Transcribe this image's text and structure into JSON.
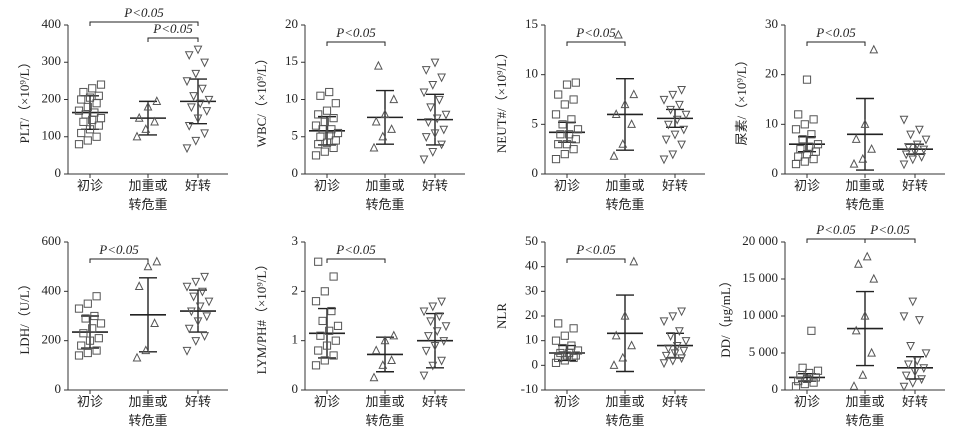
{
  "chart_data": [
    {
      "type": "dot",
      "ylabel": "PLT/（×10⁹/L）",
      "categories": [
        [
          "初诊"
        ],
        [
          "加重或",
          "转危重"
        ],
        [
          "好转"
        ]
      ],
      "markers": [
        "square",
        "triangle-up",
        "triangle-down"
      ],
      "color": "#555555",
      "ylim": [
        0,
        400
      ],
      "yticks": [
        0,
        100,
        200,
        300,
        400
      ],
      "groups": [
        {
          "values": [
            80,
            90,
            100,
            110,
            120,
            130,
            140,
            145,
            150,
            160,
            165,
            170,
            180,
            190,
            200,
            205,
            210,
            220,
            230,
            240
          ],
          "mean": 165,
          "sd": 45
        },
        {
          "values": [
            100,
            120,
            140,
            150,
            180,
            195
          ],
          "mean": 150,
          "sd": 45
        },
        {
          "values": [
            70,
            90,
            110,
            130,
            150,
            170,
            180,
            190,
            200,
            210,
            230,
            250,
            270,
            300,
            320,
            335
          ],
          "mean": 195,
          "sd": 60
        }
      ],
      "annotations": [
        {
          "text": "P<0.05",
          "from": 0,
          "to": 2
        },
        {
          "text": "P<0.05",
          "from": 1,
          "to": 2
        }
      ]
    },
    {
      "type": "dot",
      "ylabel": "WBC/（×10⁹/L）",
      "categories": [
        [
          "初诊"
        ],
        [
          "加重或",
          "转危重"
        ],
        [
          "好转"
        ]
      ],
      "markers": [
        "square",
        "triangle-up",
        "triangle-down"
      ],
      "color": "#555555",
      "ylim": [
        0,
        20
      ],
      "yticks": [
        0,
        5,
        10,
        15,
        20
      ],
      "groups": [
        {
          "values": [
            2.5,
            3,
            3.5,
            4,
            4.2,
            4.5,
            5,
            5.2,
            5.5,
            6,
            6,
            6.5,
            7,
            7.5,
            8,
            8.5,
            9.5,
            10.5,
            11
          ],
          "mean": 5.8,
          "sd": 1.9
        },
        {
          "values": [
            3.5,
            5,
            6,
            7,
            8,
            10,
            14.5
          ],
          "mean": 7.6,
          "sd": 3.6
        },
        {
          "values": [
            2,
            3,
            4,
            5,
            5.5,
            6,
            7,
            7.5,
            8,
            9,
            10,
            11,
            12,
            13,
            14,
            15
          ],
          "mean": 7.3,
          "sd": 3.4
        }
      ],
      "annotations": [
        {
          "text": "P<0.05",
          "from": 0,
          "to": 1
        }
      ]
    },
    {
      "type": "dot",
      "ylabel": "NEUT#/（×10⁹/L）",
      "categories": [
        [
          "初诊"
        ],
        [
          "加重或",
          "转危重"
        ],
        [
          "好转"
        ]
      ],
      "markers": [
        "square",
        "triangle-up",
        "triangle-down"
      ],
      "color": "#555555",
      "ylim": [
        0,
        15
      ],
      "yticks": [
        0,
        5,
        10,
        15
      ],
      "groups": [
        {
          "values": [
            1.5,
            2,
            2.5,
            3,
            3,
            3.5,
            4,
            4,
            4.5,
            5,
            5.5,
            6,
            7,
            7.5,
            8,
            9,
            9.2
          ],
          "mean": 4.2,
          "sd": 1
        },
        {
          "values": [
            1.8,
            3,
            5,
            6,
            7,
            8,
            14
          ],
          "mean": 6,
          "sd": 3.6
        },
        {
          "values": [
            1.5,
            2,
            3,
            3.5,
            4,
            4.5,
            5,
            5.5,
            6,
            6.5,
            7,
            7.5,
            8,
            8.5
          ],
          "mean": 5.6,
          "sd": 0.9
        }
      ],
      "annotations": [
        {
          "text": "P<0.05",
          "from": 0,
          "to": 1
        }
      ]
    },
    {
      "type": "dot",
      "ylabel": "尿素/（×10⁹/L）",
      "categories": [
        [
          "初诊"
        ],
        [
          "加重或",
          "转危重"
        ],
        [
          "好转"
        ]
      ],
      "markers": [
        "square",
        "triangle-up",
        "triangle-down"
      ],
      "color": "#555555",
      "ylim": [
        0,
        30
      ],
      "yticks": [
        0,
        10,
        20,
        30
      ],
      "groups": [
        {
          "values": [
            2,
            2.5,
            3,
            3.5,
            4,
            4.5,
            5,
            5.5,
            6,
            7,
            8,
            9,
            10,
            11,
            12,
            19
          ],
          "mean": 6,
          "sd": 1.5
        },
        {
          "values": [
            2,
            3,
            5,
            7,
            10,
            25
          ],
          "mean": 8,
          "sd": 7.2
        },
        {
          "values": [
            2,
            3,
            3.5,
            4,
            4.5,
            5,
            5.5,
            6,
            7,
            8,
            9,
            11
          ],
          "mean": 5,
          "sd": 1
        }
      ],
      "annotations": [
        {
          "text": "P<0.05",
          "from": 0,
          "to": 1
        }
      ]
    },
    {
      "type": "dot",
      "ylabel": "LDH/（U/L）",
      "categories": [
        [
          "初诊"
        ],
        [
          "加重或",
          "转危重"
        ],
        [
          "好转"
        ]
      ],
      "markers": [
        "square",
        "triangle-up",
        "triangle-down"
      ],
      "color": "#555555",
      "ylim": [
        0,
        600
      ],
      "yticks": [
        0,
        200,
        400,
        600
      ],
      "groups": [
        {
          "values": [
            140,
            150,
            160,
            180,
            200,
            210,
            230,
            250,
            270,
            290,
            300,
            330,
            350,
            380
          ],
          "mean": 235,
          "sd": 65
        },
        {
          "values": [
            130,
            160,
            270,
            420,
            500,
            520
          ],
          "mean": 305,
          "sd": 150
        },
        {
          "values": [
            160,
            200,
            220,
            250,
            280,
            300,
            320,
            340,
            360,
            380,
            400,
            420,
            440,
            460
          ],
          "mean": 320,
          "sd": 85
        }
      ],
      "annotations": [
        {
          "text": "P<0.05",
          "from": 0,
          "to": 1
        }
      ]
    },
    {
      "type": "dot",
      "ylabel": "LYM/PH#（×10⁹/L）",
      "categories": [
        [
          "初诊"
        ],
        [
          "加重或",
          "转危重"
        ],
        [
          "好转"
        ]
      ],
      "markers": [
        "square",
        "triangle-up",
        "triangle-down"
      ],
      "color": "#555555",
      "ylim": [
        0,
        3
      ],
      "yticks": [
        0,
        1,
        2,
        3
      ],
      "groups": [
        {
          "values": [
            0.5,
            0.6,
            0.7,
            0.8,
            0.9,
            1.0,
            1.1,
            1.2,
            1.3,
            1.4,
            1.6,
            1.8,
            2.0,
            2.3,
            2.6
          ],
          "mean": 1.15,
          "sd": 0.5
        },
        {
          "values": [
            0.25,
            0.5,
            0.6,
            0.8,
            1.0,
            1.1
          ],
          "mean": 0.72,
          "sd": 0.35
        },
        {
          "values": [
            0.3,
            0.5,
            0.6,
            0.8,
            0.9,
            1.0,
            1.1,
            1.2,
            1.3,
            1.4,
            1.5,
            1.6,
            1.7,
            1.8
          ],
          "mean": 1.0,
          "sd": 0.55
        }
      ],
      "annotations": [
        {
          "text": "P<0.05",
          "from": 0,
          "to": 1
        }
      ]
    },
    {
      "type": "dot",
      "ylabel": "NLR",
      "categories": [
        [
          "初诊"
        ],
        [
          "加重或",
          "转危重"
        ],
        [
          "好转"
        ]
      ],
      "markers": [
        "square",
        "triangle-up",
        "triangle-down"
      ],
      "color": "#555555",
      "ylim": [
        -10,
        50
      ],
      "yticks": [
        -10,
        0,
        10,
        20,
        30,
        40,
        50
      ],
      "groups": [
        {
          "values": [
            1,
            2,
            3,
            3,
            4,
            4,
            5,
            5,
            6,
            7,
            8,
            10,
            12,
            15,
            17
          ],
          "mean": 5,
          "sd": 3
        },
        {
          "values": [
            0,
            3,
            8,
            12,
            20,
            42
          ],
          "mean": 13,
          "sd": 15.5
        },
        {
          "values": [
            1,
            2,
            3,
            4,
            5,
            6,
            7,
            8,
            10,
            12,
            14,
            18,
            20,
            22
          ],
          "mean": 8,
          "sd": 5
        }
      ],
      "annotations": [
        {
          "text": "P<0.05",
          "from": 0,
          "to": 1
        }
      ]
    },
    {
      "type": "dot",
      "ylabel": "DD/（μg/mL）",
      "categories": [
        [
          "初诊"
        ],
        [
          "加重或",
          "转危重"
        ],
        [
          "好转"
        ]
      ],
      "markers": [
        "square",
        "triangle-up",
        "triangle-down"
      ],
      "color": "#555555",
      "ylim": [
        0,
        20000
      ],
      "yticks": [
        0,
        {
          "value": 5000,
          "label": "5 000"
        },
        {
          "value": 10000,
          "label": "10 000"
        },
        {
          "value": 15000,
          "label": "15 000"
        },
        {
          "value": 20000,
          "label": "20 000"
        }
      ],
      "groups": [
        {
          "values": [
            500,
            800,
            1000,
            1200,
            1500,
            1700,
            2000,
            2300,
            2600,
            3000,
            8000
          ],
          "mean": 1700,
          "sd": 500
        },
        {
          "values": [
            500,
            2000,
            5000,
            8000,
            10000,
            15000,
            17000,
            18000
          ],
          "mean": 8300,
          "sd": 5000
        },
        {
          "values": [
            500,
            1000,
            1500,
            2000,
            2500,
            3000,
            3500,
            4000,
            5000,
            6000,
            9500,
            10000,
            12000
          ],
          "mean": 3000,
          "sd": 1500
        }
      ],
      "annotations": [
        {
          "text": "P<0.05",
          "from": 0,
          "to": 1
        },
        {
          "text": "P<0.05",
          "from": 1,
          "to": 2
        }
      ]
    }
  ]
}
